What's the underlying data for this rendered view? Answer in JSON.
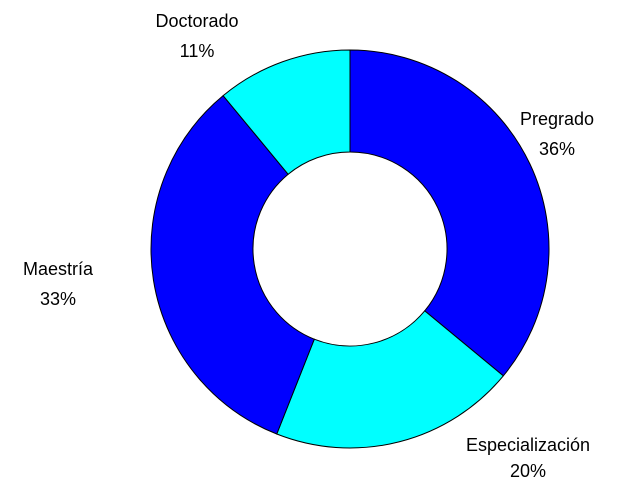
{
  "chart_data": {
    "type": "donut",
    "categories": [
      "Pregrado",
      "Especialización",
      "Maestría",
      "Doctorado"
    ],
    "values": [
      36,
      20,
      33,
      11
    ],
    "value_labels": [
      "36%",
      "20%",
      "33%",
      "11%"
    ],
    "colors": [
      "#0000ff",
      "#00ffff",
      "#0000ff",
      "#00ffff"
    ]
  }
}
